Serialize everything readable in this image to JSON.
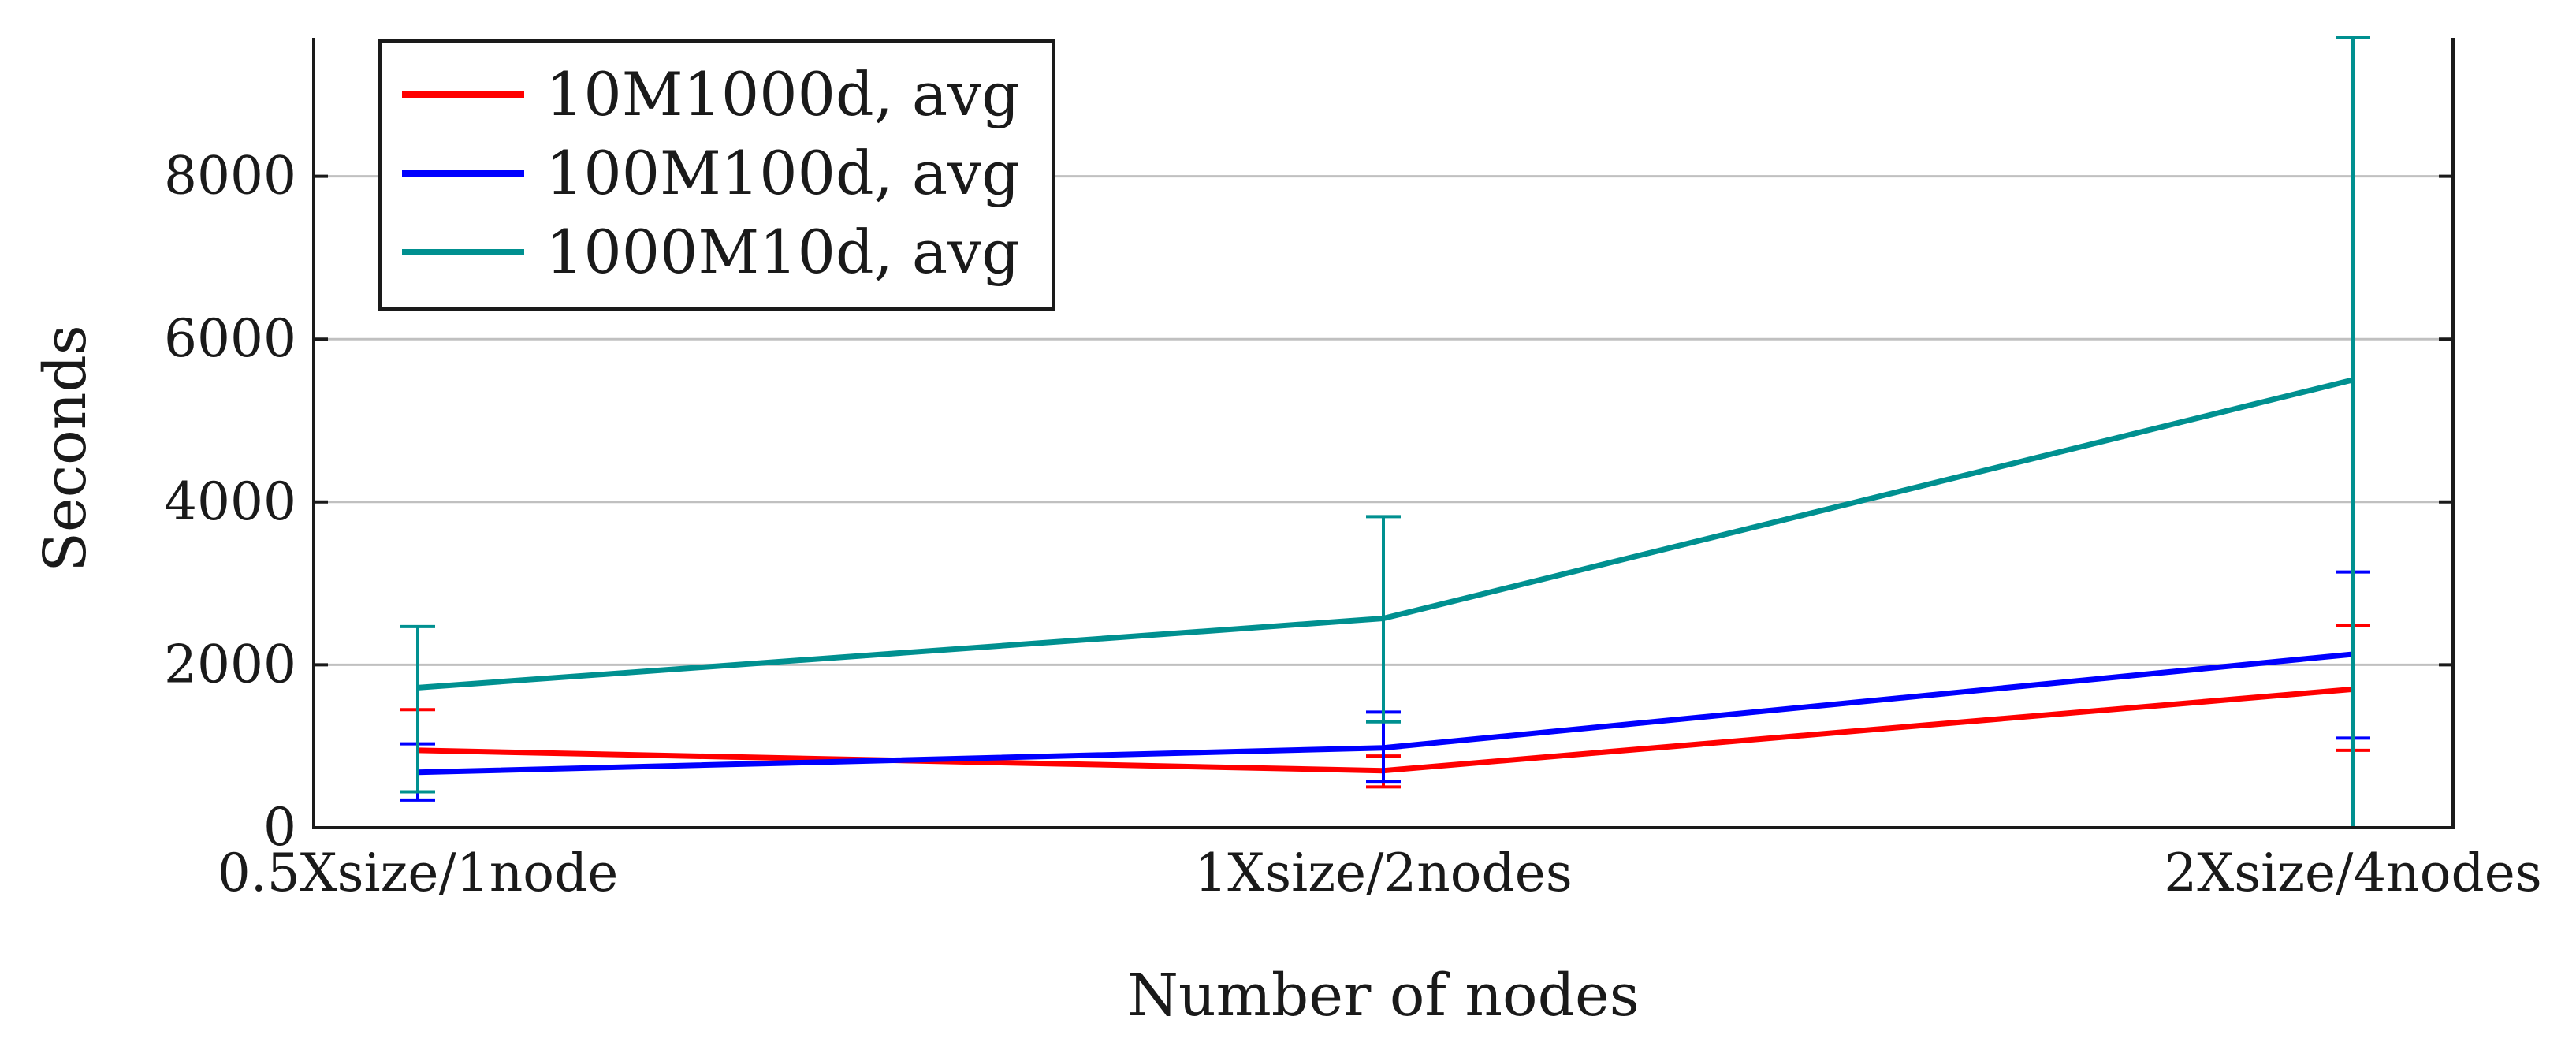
{
  "chart_data": {
    "type": "line",
    "title": "",
    "xlabel": "Number of nodes",
    "ylabel": "Seconds",
    "categories": [
      "0.5Xsize/1node",
      "1Xsize/2nodes",
      "2Xsize/4nodes"
    ],
    "ylim": [
      0,
      9700
    ],
    "yticks": [
      0,
      2000,
      4000,
      6000,
      8000
    ],
    "grid": true,
    "legend_position": "top-left",
    "series": [
      {
        "name": "10M1000d, avg",
        "color": "#ff0000",
        "values": [
          950,
          700,
          1700
        ],
        "error_low": [
          440,
          500,
          950
        ],
        "error_high": [
          1450,
          880,
          2480
        ]
      },
      {
        "name": "100M100d, avg",
        "color": "#0000ff",
        "values": [
          680,
          980,
          2130
        ],
        "error_low": [
          340,
          570,
          1100
        ],
        "error_high": [
          1030,
          1420,
          3140
        ]
      },
      {
        "name": "1000M10d, avg",
        "color": "#009090",
        "values": [
          1720,
          2570,
          5500
        ],
        "error_low": [
          440,
          1300,
          0
        ],
        "error_high": [
          2470,
          3820,
          9700
        ]
      }
    ]
  }
}
